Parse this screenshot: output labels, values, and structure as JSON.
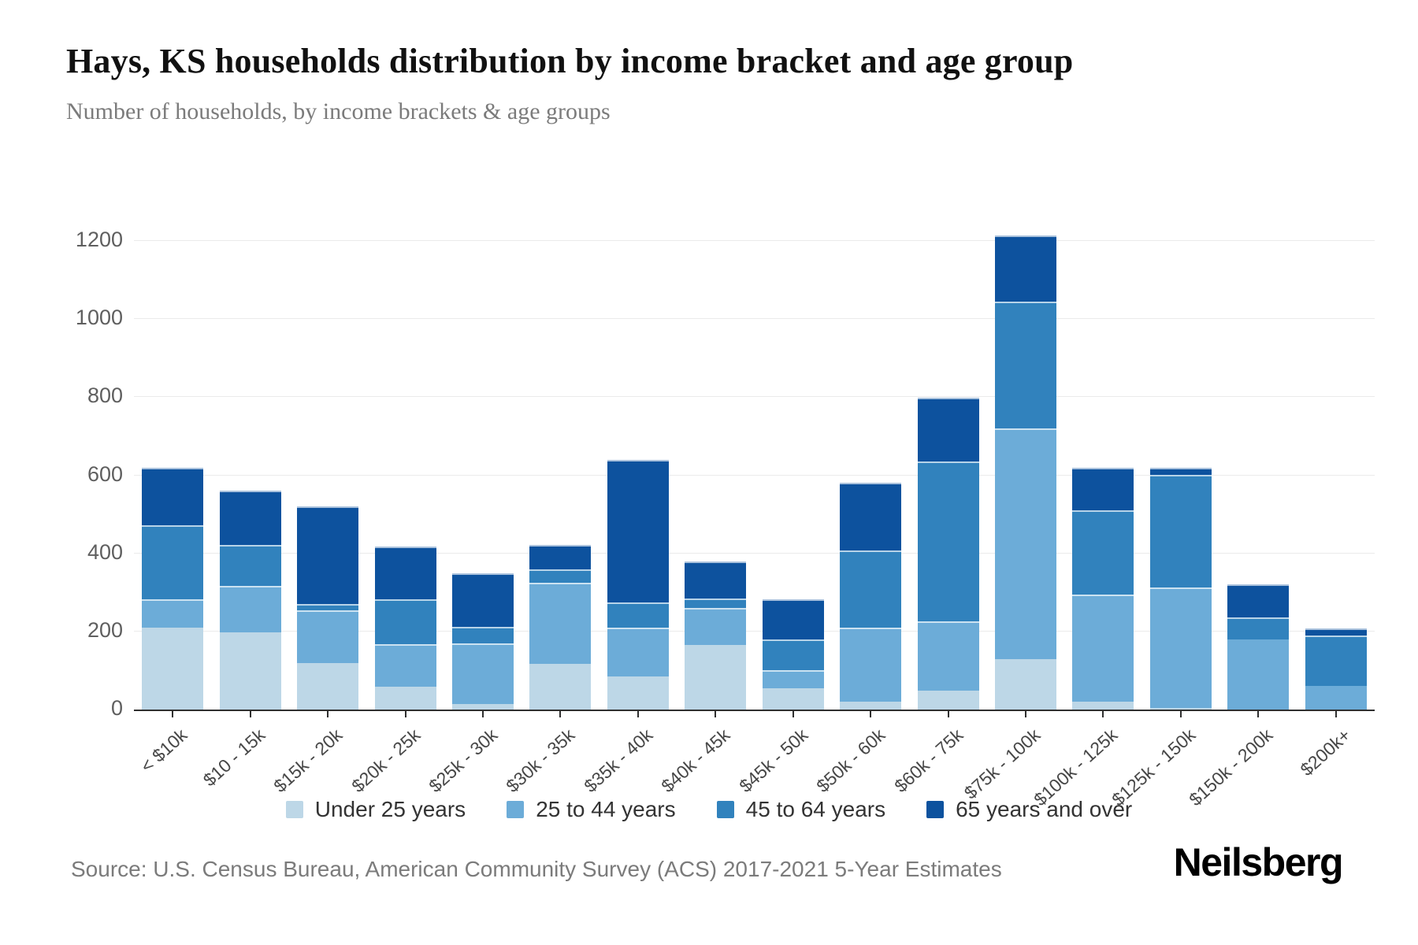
{
  "header": {
    "title": "Hays, KS households distribution by income bracket and age group",
    "subtitle": "Number of households, by income brackets & age groups"
  },
  "footer": {
    "source": "Source: U.S. Census Bureau, American Community Survey (ACS) 2017-2021 5-Year Estimates",
    "brand": "Neilsberg"
  },
  "chart_data": {
    "type": "bar",
    "stacked": true,
    "title": "Hays, KS households distribution by income bracket and age group",
    "subtitle": "Number of households, by income brackets & age groups",
    "xlabel": "",
    "ylabel": "",
    "ylim": [
      0,
      1200
    ],
    "yticks": [
      0,
      200,
      400,
      600,
      800,
      1000,
      1200
    ],
    "grid": true,
    "legend_position": "bottom",
    "categories": [
      "< $10k",
      "$10 - 15k",
      "$15k - 20k",
      "$20k - 25k",
      "$25k - 30k",
      "$30k - 35k",
      "$35k - 40k",
      "$40k - 45k",
      "$45k - 50k",
      "$50k - 60k",
      "$60k - 75k",
      "$75k - 100k",
      "$100k - 125k",
      "$125k - 150k",
      "$150k - 200k",
      "$200k+"
    ],
    "series": [
      {
        "name": "Under 25 years",
        "color": "#bdd7e7",
        "values": [
          210,
          198,
          120,
          58,
          15,
          118,
          85,
          165,
          55,
          20,
          48,
          130,
          20,
          5,
          0,
          0
        ]
      },
      {
        "name": "25 to 44 years",
        "color": "#6cacd8",
        "values": [
          72,
          118,
          135,
          110,
          155,
          207,
          125,
          95,
          45,
          190,
          177,
          590,
          275,
          308,
          180,
          60
        ]
      },
      {
        "name": "45 to 64 years",
        "color": "#3182bd",
        "values": [
          190,
          105,
          15,
          115,
          42,
          35,
          65,
          25,
          80,
          198,
          410,
          325,
          215,
          288,
          55,
          130
        ]
      },
      {
        "name": "65 years and over",
        "color": "#0d529e",
        "values": [
          148,
          140,
          250,
          135,
          136,
          62,
          365,
          95,
          102,
          172,
          163,
          170,
          110,
          19,
          85,
          17
        ]
      }
    ],
    "totals": [
      620,
      561,
      520,
      418,
      348,
      422,
      640,
      380,
      282,
      580,
      798,
      1215,
      620,
      620,
      320,
      207
    ]
  }
}
